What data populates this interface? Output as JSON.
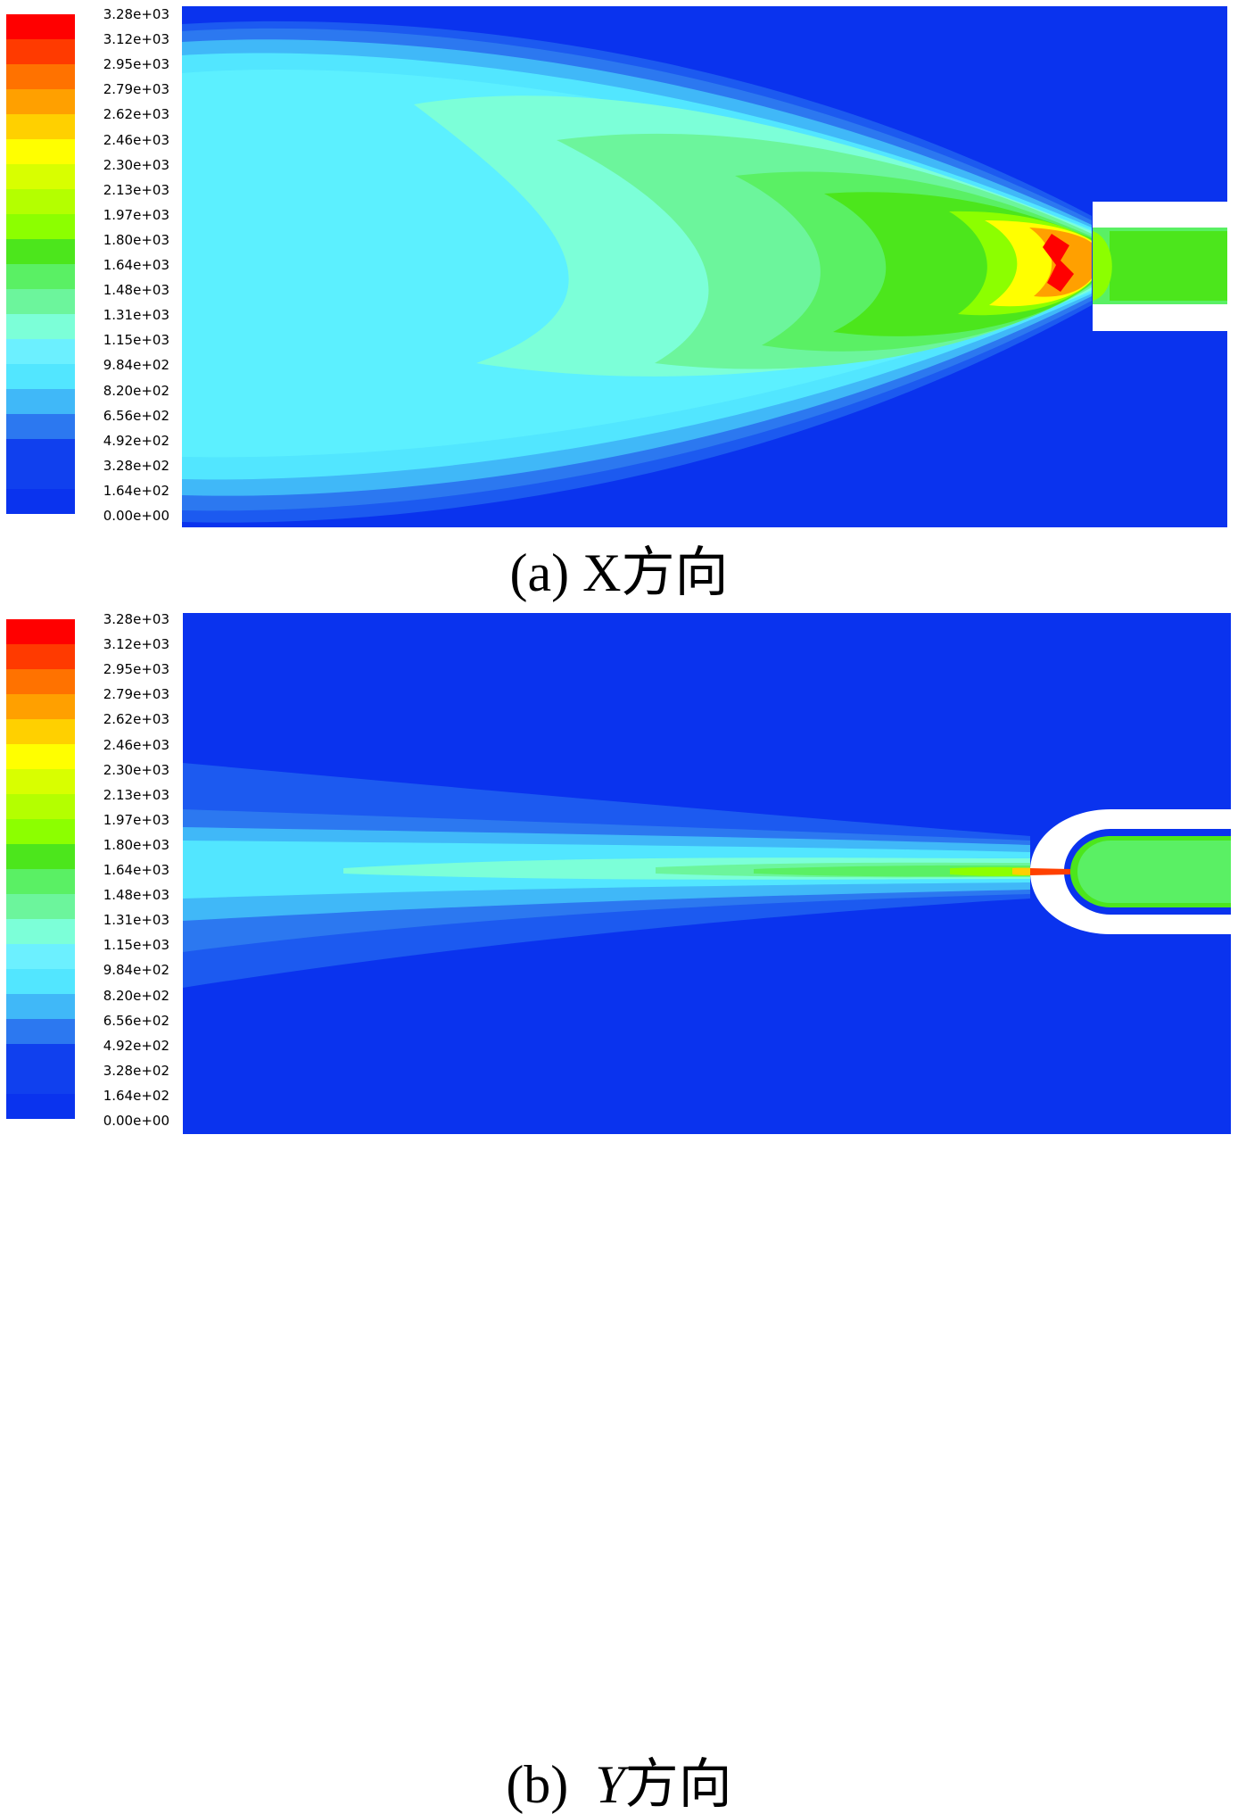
{
  "colormap": {
    "colors": [
      "#ff0000",
      "#ff3a00",
      "#ff7200",
      "#ffa000",
      "#ffd000",
      "#ffff00",
      "#d8ff00",
      "#b4ff00",
      "#8cff00",
      "#4ce61c",
      "#5af064",
      "#6cf59c",
      "#7cffd8",
      "#6cf0ff",
      "#52e6ff",
      "#40b8f8",
      "#2c78f0",
      "#1040ee"
    ],
    "background": "#0a33ee",
    "wall": "#ffffff"
  },
  "ticks": [
    "3.28e+03",
    "3.12e+03",
    "2.95e+03",
    "2.79e+03",
    "2.62e+03",
    "2.46e+03",
    "2.30e+03",
    "2.13e+03",
    "1.97e+03",
    "1.80e+03",
    "1.64e+03",
    "1.48e+03",
    "1.31e+03",
    "1.15e+03",
    "9.84e+02",
    "8.20e+02",
    "6.56e+02",
    "4.92e+02",
    "3.28e+02",
    "1.64e+02",
    "0.00e+00"
  ],
  "panels": [
    {
      "caption_letter": "(a)",
      "caption_axis": "X",
      "caption_suffix": "方向"
    },
    {
      "caption_letter": "(b)",
      "caption_axis": "Y",
      "caption_suffix": "方向"
    }
  ]
}
